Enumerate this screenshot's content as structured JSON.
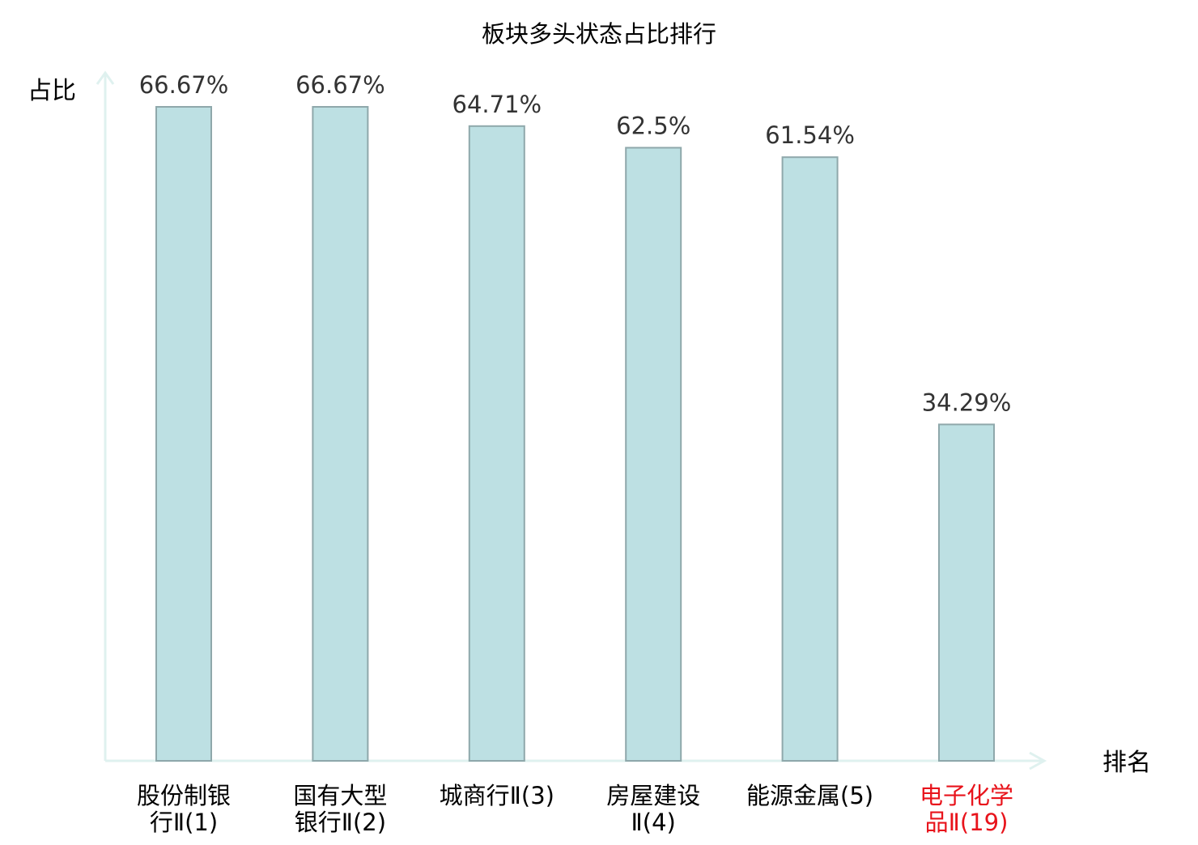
{
  "chart_data": {
    "type": "bar",
    "title": "板块多头状态占比排行",
    "ylabel": "占比",
    "xlabel": "排名",
    "categories": [
      [
        "股份制银",
        "行Ⅱ(1)"
      ],
      [
        "国有大型",
        "银行Ⅱ(2)"
      ],
      [
        "城商行Ⅱ(3)"
      ],
      [
        "房屋建设",
        "Ⅱ(4)"
      ],
      [
        "能源金属(5)"
      ],
      [
        "电子化学",
        "品Ⅱ(19)"
      ]
    ],
    "values": [
      66.67,
      66.67,
      64.71,
      62.5,
      61.54,
      34.29
    ],
    "value_labels": [
      "66.67%",
      "66.67%",
      "64.71%",
      "62.5%",
      "61.54%",
      "34.29%"
    ],
    "highlight_index": 5,
    "ylim": [
      0,
      70
    ],
    "grid": false,
    "legend": "none",
    "colors": {
      "bar_fill": "#bde0e3",
      "bar_stroke": "#8fa8ab",
      "axis": "#dff1ef",
      "text": "#333333",
      "label": "#000000",
      "highlight": "#e8131b"
    }
  }
}
